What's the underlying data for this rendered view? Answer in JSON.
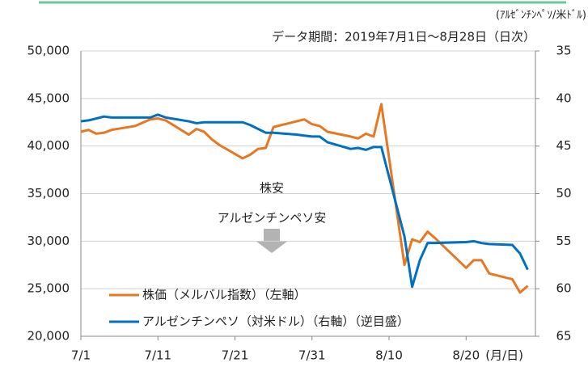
{
  "chart_data": {
    "type": "line",
    "subtitle": "データ期間：2019年7月1日～8月28日（日次）",
    "y2_axis_label": "(ｱﾙｾﾞﾝﾁﾝﾍﾟｿ/米ﾄﾞﾙ)",
    "x_axis_label": "(月/日)",
    "annotations": [
      "株安",
      "アルゼンチンペソ安"
    ],
    "x": [
      "7/1",
      "7/2",
      "7/3",
      "7/4",
      "7/5",
      "7/8",
      "7/10",
      "7/11",
      "7/12",
      "7/15",
      "7/16",
      "7/17",
      "7/18",
      "7/19",
      "7/22",
      "7/23",
      "7/24",
      "7/25",
      "7/26",
      "7/29",
      "7/30",
      "7/31",
      "8/1",
      "8/2",
      "8/5",
      "8/6",
      "8/7",
      "8/8",
      "8/9",
      "8/12",
      "8/13",
      "8/14",
      "8/15",
      "8/16",
      "8/20",
      "8/21",
      "8/22",
      "8/23",
      "8/26",
      "8/27",
      "8/28"
    ],
    "xlim": [
      "7/1",
      "8/29"
    ],
    "xticks": [
      "7/1",
      "7/11",
      "7/21",
      "7/31",
      "8/10",
      "8/20"
    ],
    "series": [
      {
        "name": "株価（メルバル指数）（左軸）",
        "color": "#e87722",
        "values": [
          41500,
          41700,
          41300,
          41400,
          41700,
          42100,
          42800,
          42900,
          42700,
          41200,
          41800,
          41500,
          40700,
          40100,
          38700,
          39100,
          39700,
          39800,
          42000,
          42600,
          42800,
          42300,
          42100,
          41500,
          41000,
          40800,
          41300,
          41000,
          44400,
          27500,
          30200,
          29900,
          31000,
          30300,
          27200,
          28000,
          28000,
          26600,
          26000,
          24600,
          25300
        ]
      },
      {
        "name": "アルゼンチンペソ（対米ドル）（右軸）（逆目盛）",
        "color": "#0070c0",
        "axis": "y2",
        "values": [
          42.4,
          42.3,
          42.1,
          41.9,
          42.0,
          42.0,
          42.0,
          41.7,
          42.0,
          42.4,
          42.6,
          42.5,
          42.5,
          42.5,
          42.5,
          42.8,
          43.2,
          43.6,
          43.6,
          43.8,
          43.9,
          44.0,
          44.0,
          44.6,
          45.3,
          45.2,
          45.4,
          45.1,
          45.1,
          54.5,
          59.8,
          57.0,
          55.2,
          55.2,
          55.1,
          55.0,
          55.2,
          55.3,
          55.4,
          56.3,
          58.0
        ]
      }
    ],
    "ylim": [
      20000,
      50000
    ],
    "yticks": [
      {
        "value": 20000,
        "label": "20,000"
      },
      {
        "value": 25000,
        "label": "25,000"
      },
      {
        "value": 30000,
        "label": "30,000"
      },
      {
        "value": 35000,
        "label": "35,000"
      },
      {
        "value": 40000,
        "label": "40,000"
      },
      {
        "value": 45000,
        "label": "45,000"
      },
      {
        "value": 50000,
        "label": "50,000"
      }
    ],
    "y2lim": [
      65,
      35
    ],
    "y2ticks": [
      35,
      40,
      45,
      50,
      55,
      60,
      65
    ],
    "grid": true
  }
}
